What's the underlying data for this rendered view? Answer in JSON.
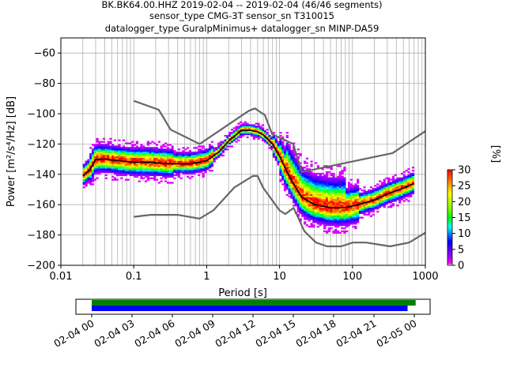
{
  "chart_data": {
    "type": "heatmap",
    "title_lines": [
      "BK.BK64.00.HHZ   2019-02-04 -- 2019-02-04  (46/46 segments)",
      "sensor_type CMG-3T sensor_sn T310015",
      "datalogger_type GuralpMinimus+ datalogger_sn MINP-DA59"
    ],
    "xlabel": "Period [s]",
    "ylabel": "Power [m²/s⁴/Hz] [dB]",
    "x_scale": "log",
    "xlim": [
      0.01,
      1000
    ],
    "ylim": [
      -200,
      -50
    ],
    "x_ticks": [
      0.01,
      0.1,
      1,
      10,
      100,
      1000
    ],
    "x_tick_labels": [
      "0.01",
      "0.1",
      "1",
      "10",
      "100",
      "1000"
    ],
    "y_ticks": [
      -200,
      -180,
      -160,
      -140,
      -120,
      -100,
      -80,
      -60
    ],
    "y_tick_labels": [
      "−200",
      "−180",
      "−160",
      "−140",
      "−120",
      "−100",
      "−80",
      "−60"
    ],
    "grid": true,
    "colorbar": {
      "label": "[%]",
      "range": [
        0,
        30
      ],
      "ticks": [
        0,
        5,
        10,
        15,
        20,
        25,
        30
      ],
      "tick_labels": [
        "0",
        "5",
        "10",
        "15",
        "20",
        "25",
        "30"
      ]
    },
    "noise_models": [
      {
        "name": "high",
        "color": "#666666",
        "period": [
          0.1,
          0.22,
          0.32,
          0.8,
          3.8,
          4.6,
          6.3,
          7.9,
          15.4,
          20,
          354.8,
          1000
        ],
        "power": [
          -91.5,
          -97.4,
          -110.5,
          -120,
          -98,
          -96.5,
          -101,
          -113.5,
          -120,
          -138.5,
          -126,
          -111.5
        ]
      },
      {
        "name": "low",
        "color": "#666666",
        "period": [
          0.1,
          0.17,
          0.4,
          0.8,
          1.24,
          2.4,
          4.3,
          5,
          6,
          10,
          12,
          15.6,
          21.9,
          31.6,
          45,
          70,
          101,
          154,
          328,
          600,
          1000
        ],
        "power": [
          -168,
          -166.7,
          -166.7,
          -169.2,
          -163.7,
          -148.6,
          -141.1,
          -141.1,
          -149,
          -163.8,
          -166.2,
          -162.1,
          -177.5,
          -185,
          -187.5,
          -187.5,
          -185,
          -185,
          -187.5,
          -185,
          -178.5
        ]
      }
    ],
    "mean_curve": {
      "color": "#000000",
      "period": [
        0.02,
        0.025,
        0.03,
        0.04,
        0.06,
        0.1,
        0.15,
        0.3,
        0.6,
        1,
        1.5,
        2,
        3,
        4,
        5,
        6,
        8,
        10,
        12,
        15,
        20,
        30,
        50,
        80,
        120,
        200,
        300,
        500,
        700
      ],
      "power": [
        -141,
        -137,
        -130,
        -130,
        -131,
        -132,
        -132,
        -133,
        -133,
        -131,
        -125,
        -118,
        -111,
        -111,
        -112,
        -114,
        -120,
        -128,
        -136,
        -145,
        -155,
        -160,
        -162,
        -162,
        -160,
        -157,
        -153,
        -149,
        -146
      ]
    },
    "time_axis": {
      "tick_labels": [
        "02-04 00",
        "02-04 03",
        "02-04 06",
        "02-04 09",
        "02-04 12",
        "02-04 15",
        "02-04 18",
        "02-04 21",
        "02-05 00"
      ],
      "bars": [
        {
          "name": "data_available",
          "color": "#008000",
          "start_hours": 0,
          "end_hours": 24.1
        },
        {
          "name": "psd_segments",
          "color": "#0000ff",
          "start_hours": 0,
          "end_hours": 23.5
        }
      ]
    }
  }
}
